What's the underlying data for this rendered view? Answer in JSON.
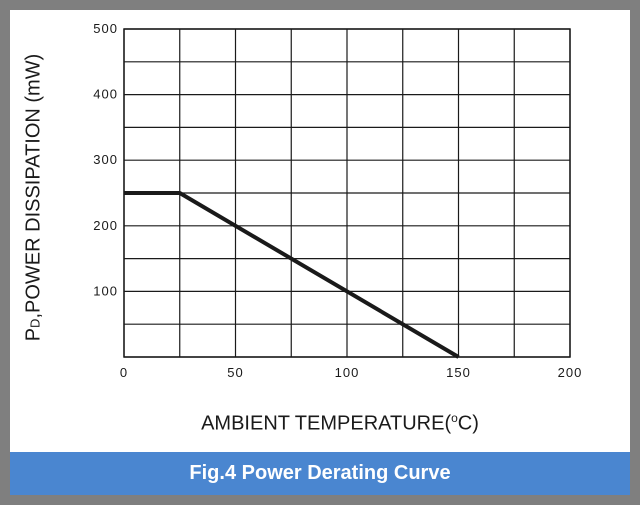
{
  "figure": {
    "caption": "Fig.4 Power Derating Curve"
  },
  "chart_data": {
    "type": "line",
    "title": "",
    "xlabel_main": "AMBIENT TEMPERATURE(",
    "xlabel_sup": "o",
    "xlabel_end": "C)",
    "ylabel_prefix": "P",
    "ylabel_sub": "D",
    "ylabel_rest": ",POWER DISSIPATION (mW)",
    "xlim": [
      0,
      200
    ],
    "ylim": [
      0,
      500
    ],
    "x_ticks": [
      "0",
      "50",
      "100",
      "150",
      "200"
    ],
    "y_ticks": [
      "100",
      "200",
      "300",
      "400",
      "500"
    ],
    "grid": true,
    "series": [
      {
        "x": [
          0,
          25,
          150
        ],
        "y": [
          250,
          250,
          0
        ]
      }
    ],
    "colors": {
      "line": "#1a1a1a",
      "grid": "#1a1a1a",
      "caption_bg": "#4a86d0",
      "frame": "#7f7f7f"
    }
  }
}
